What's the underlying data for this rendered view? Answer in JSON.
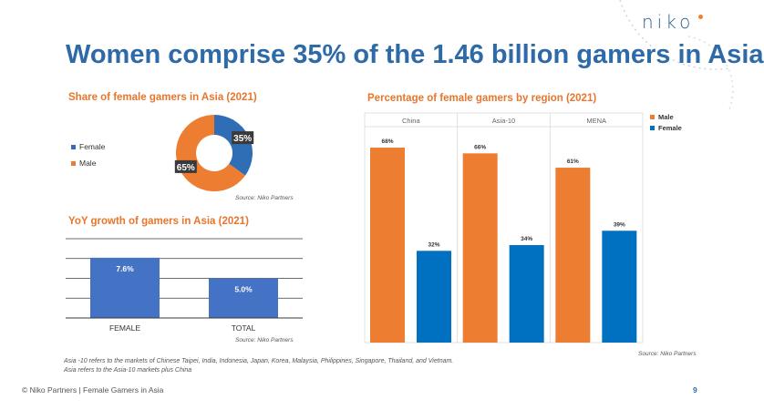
{
  "logo": "niko",
  "title": "Women comprise 35% of the 1.46 billion gamers in Asia",
  "colors": {
    "orange": "#ed7d31",
    "blue": "#0070c0",
    "bar_blue": "#4472c4",
    "accent_title": "#2e6aa8",
    "subtitle": "#e8762c"
  },
  "chart_data": [
    {
      "type": "pie",
      "title": "Share of female gamers in Asia (2021)",
      "slices": [
        {
          "label": "Female",
          "value": 35,
          "data_label": "35%",
          "color": "#2f6db5"
        },
        {
          "label": "Male",
          "value": 65,
          "data_label": "65%",
          "color": "#ed7d31"
        }
      ],
      "legend": [
        "Female",
        "Male"
      ],
      "legend_position": "left",
      "source": "Source: Niko Partners"
    },
    {
      "type": "bar",
      "title": "YoY growth of gamers in Asia (2021)",
      "categories": [
        "FEMALE",
        "TOTAL"
      ],
      "values": [
        7.6,
        5.0
      ],
      "data_labels": [
        "7.6%",
        "5.0%"
      ],
      "ylim": [
        0,
        10
      ],
      "grid": true,
      "source": "Source: Niko Partners"
    },
    {
      "type": "bar",
      "title": "Percentage of female gamers by region (2021)",
      "categories": [
        "China",
        "Asia-10",
        "MENA"
      ],
      "series": [
        {
          "name": "Male",
          "values": [
            68,
            66,
            61
          ],
          "data_labels": [
            "68%",
            "66%",
            "61%"
          ],
          "color": "#ed7d31"
        },
        {
          "name": "Female",
          "values": [
            32,
            34,
            39
          ],
          "data_labels": [
            "32%",
            "34%",
            "39%"
          ],
          "color": "#0070c0"
        }
      ],
      "ylim": [
        0,
        75
      ],
      "legend_position": "right",
      "source": "Source: Niko Partners"
    }
  ],
  "footnote": {
    "line1": "Asia -10 refers to the markets of Chinese Taipei, India, Indonesia, Japan, Korea, Malaysia, Philippines, Singapore, Thailand, and Vietnam.",
    "line2": "Asia refers to the Asia-10 markets plus China"
  },
  "footer": "© Niko Partners | Female Gamers in Asia",
  "page_number": "9"
}
